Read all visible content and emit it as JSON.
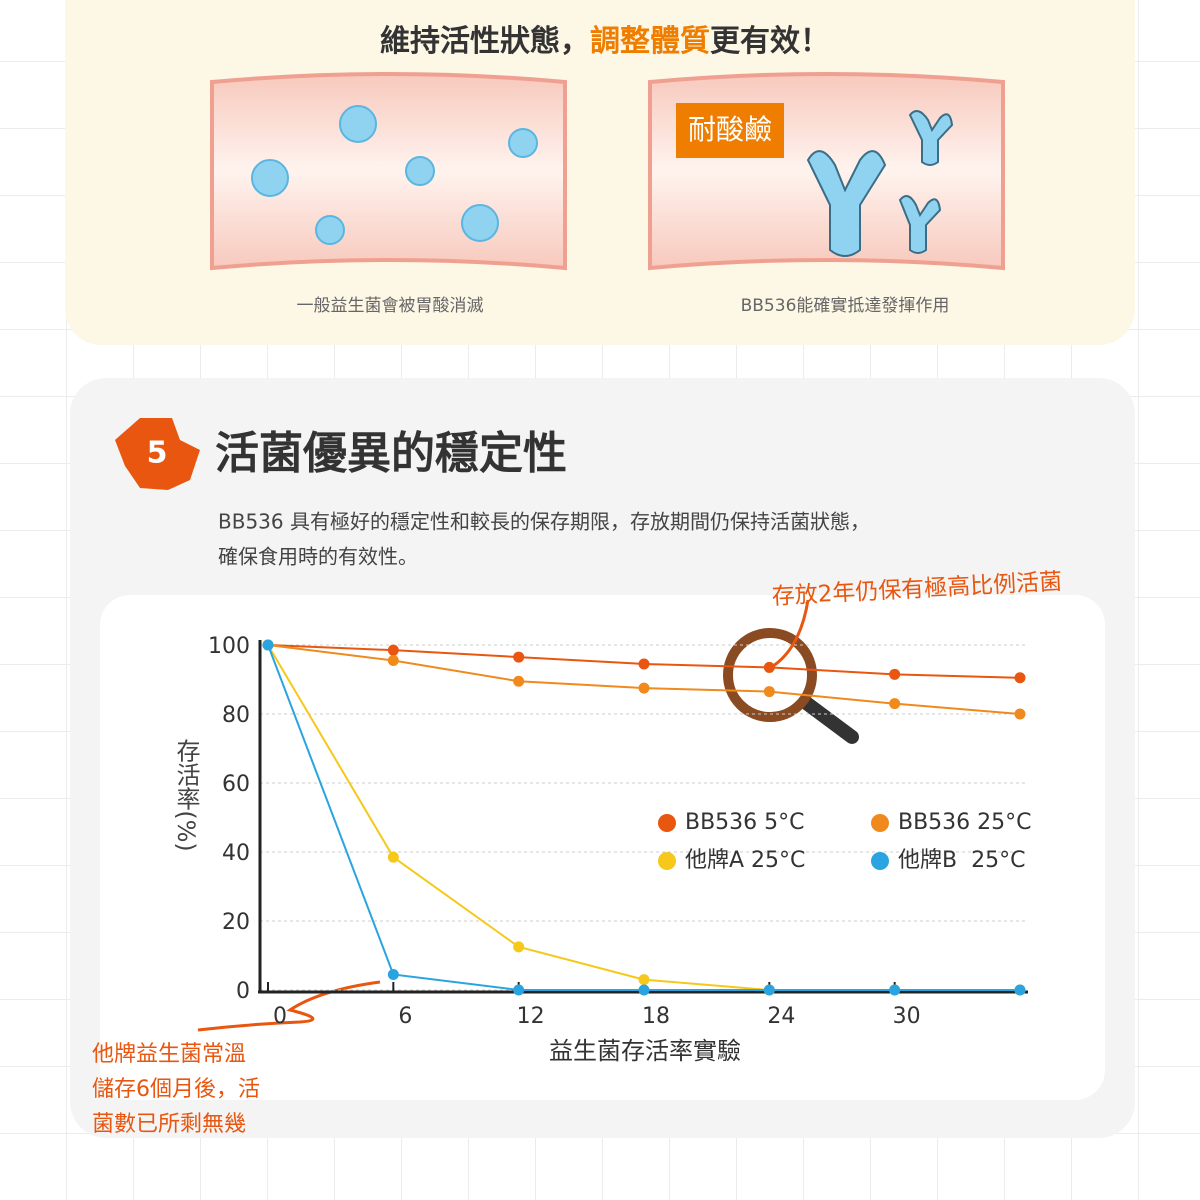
{
  "top": {
    "title_parts": [
      "維持活性狀態，",
      "調整體質",
      "更有效！"
    ],
    "badge": "耐酸鹼",
    "left_caption": "一般益生菌會被胃酸消滅",
    "right_caption": "BB536能確實抵達發揮作用"
  },
  "section": {
    "number": "5",
    "title": "活菌優異的穩定性",
    "description": [
      "BB536 具有極好的穩定性和較長的保存期限，存放期間仍保持活菌狀態，",
      "確保食用時的有效性。"
    ]
  },
  "chart_data": {
    "type": "line",
    "xlabel": "益生菌存活率實驗",
    "ylabel": "存活率(%)",
    "x": [
      0,
      6,
      12,
      18,
      24,
      30,
      36
    ],
    "xlim": [
      0,
      36
    ],
    "xticks": [
      0,
      6,
      12,
      18,
      24,
      30
    ],
    "ylim": [
      0,
      100
    ],
    "yticks": [
      0,
      20,
      40,
      60,
      80,
      100
    ],
    "grid": true,
    "series": [
      {
        "name": "BB536 5°C",
        "color": "#e8560f",
        "values": [
          100,
          98.5,
          96.5,
          94.5,
          93.5,
          91.5,
          90.5
        ]
      },
      {
        "name": "BB536 25°C",
        "color": "#f08a1c",
        "values": [
          100,
          95.5,
          89.5,
          87.5,
          86.5,
          83,
          80
        ]
      },
      {
        "name": "他牌A 25°C",
        "color": "#f5c81a",
        "values": [
          100,
          38.5,
          12.5,
          3,
          0,
          0,
          0
        ]
      },
      {
        "name": "他牌B  25°C",
        "color": "#2aa4e0",
        "values": [
          100,
          4.5,
          0,
          0,
          0,
          0,
          0
        ]
      }
    ],
    "annotations": [
      "存放2年仍保有極高比例活菌",
      [
        "他牌益生菌常溫",
        "儲存6個月後，活",
        "菌數已所剩無幾"
      ]
    ]
  }
}
